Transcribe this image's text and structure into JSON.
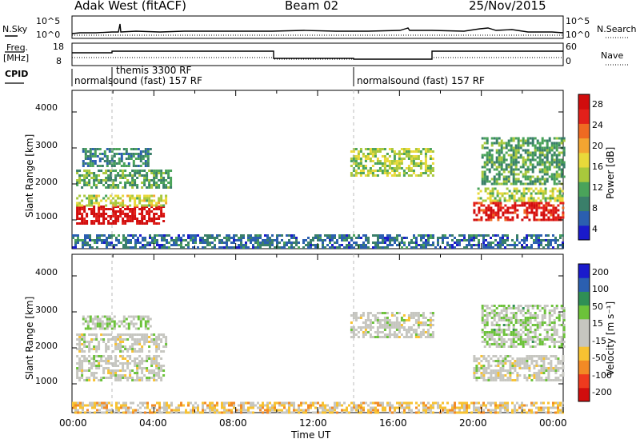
{
  "header": {
    "station": "Adak West (fitACF)",
    "beam": "Beam 02",
    "date": "25/Nov/2015"
  },
  "top_panels": {
    "nsky_label": "N.Sky",
    "nsky_ticks": [
      "10^5",
      "10^0"
    ],
    "nsearch_label": "N.Search",
    "nsearch_ticks": [
      "10^5",
      "10^0"
    ],
    "freq_label_1": "Freq.",
    "freq_label_2": "[MHz]",
    "freq_ticks": [
      "18",
      "8"
    ],
    "nave_label": "Nave",
    "nave_ticks": [
      "60",
      "0"
    ],
    "cpid_label": "CPID",
    "cpid_segments": [
      {
        "label": "normalsound (fast) 157 RF",
        "start_h": 0
      },
      {
        "label": "themis 3300 RF",
        "start_h": 2
      },
      {
        "label": "normalsound (fast) 157 RF",
        "start_h": 14
      }
    ]
  },
  "chart_data": [
    {
      "type": "heatmap",
      "title": "",
      "ylabel": "Slant Range [km]",
      "y_ticks": [
        "4000",
        "3000",
        "2000",
        "1000"
      ],
      "ylim": [
        200,
        4600
      ],
      "xlim": [
        0,
        24
      ],
      "colorbar_label": "Power [dB]",
      "colorbar_ticks": [
        "28",
        "24",
        "20",
        "16",
        "12",
        "8",
        "4"
      ],
      "colorbar_range": [
        0,
        30
      ],
      "colorbar_colors": [
        "#1a1acc",
        "#2b5fb0",
        "#3a7f6a",
        "#4aa35a",
        "#a9c83c",
        "#e9d93a",
        "#f3a531",
        "#ef6a22",
        "#e2201a",
        "#d10d0d"
      ],
      "echo_regions": [
        {
          "x": [
            0.2,
            4.5
          ],
          "y": [
            900,
            1400
          ],
          "value": 29
        },
        {
          "x": [
            0.2,
            4.6
          ],
          "y": [
            1400,
            1700
          ],
          "value": 15
        },
        {
          "x": [
            0.2,
            4.8
          ],
          "y": [
            1900,
            2400
          ],
          "value": 10
        },
        {
          "x": [
            0.5,
            3.8
          ],
          "y": [
            2500,
            3000
          ],
          "value": 8
        },
        {
          "x": [
            13.6,
            17.6
          ],
          "y": [
            2200,
            3000
          ],
          "value": 14
        },
        {
          "x": [
            19.6,
            24.0
          ],
          "y": [
            1000,
            1500
          ],
          "value": 27
        },
        {
          "x": [
            19.8,
            24.0
          ],
          "y": [
            1500,
            1900
          ],
          "value": 14
        },
        {
          "x": [
            20.0,
            24.0
          ],
          "y": [
            2000,
            3300
          ],
          "value": 10
        },
        {
          "x": [
            0.0,
            24.0
          ],
          "y": [
            200,
            600
          ],
          "value": 6
        }
      ]
    },
    {
      "type": "heatmap",
      "title": "",
      "ylabel": "Slant Range [km]",
      "y_ticks": [
        "4000",
        "3000",
        "2000",
        "1000"
      ],
      "ylim": [
        200,
        4600
      ],
      "xlim": [
        0,
        24
      ],
      "xlabel": "Time UT",
      "x_ticks": [
        "00:00",
        "04:00",
        "08:00",
        "12:00",
        "16:00",
        "20:00",
        "00:00"
      ],
      "colorbar_label": "Velocity [m s⁻¹]",
      "colorbar_ticks": [
        "200",
        "100",
        "50",
        "15",
        "-15",
        "-50",
        "-100",
        "-200"
      ],
      "colorbar_range": [
        -250,
        250
      ],
      "colorbar_colors": [
        "#d10d0d",
        "#ef3a1e",
        "#f28a25",
        "#f7c232",
        "#c6c6c0",
        "#c6c6c0",
        "#6cc23a",
        "#2f8f55",
        "#2b5fb0",
        "#1a1acc"
      ],
      "echo_regions": [
        {
          "x": [
            0.2,
            4.5
          ],
          "y": [
            1100,
            1800
          ],
          "value": 0
        },
        {
          "x": [
            0.2,
            4.6
          ],
          "y": [
            1900,
            2400
          ],
          "value": 0
        },
        {
          "x": [
            0.5,
            3.8
          ],
          "y": [
            2500,
            2900
          ],
          "value": 30
        },
        {
          "x": [
            13.6,
            17.6
          ],
          "y": [
            2300,
            3000
          ],
          "value": 0
        },
        {
          "x": [
            19.6,
            24.0
          ],
          "y": [
            1100,
            1800
          ],
          "value": 0
        },
        {
          "x": [
            20.0,
            24.0
          ],
          "y": [
            2000,
            3200
          ],
          "value": 40
        },
        {
          "x": [
            0.0,
            24.0
          ],
          "y": [
            200,
            500
          ],
          "value": -60
        }
      ]
    }
  ]
}
